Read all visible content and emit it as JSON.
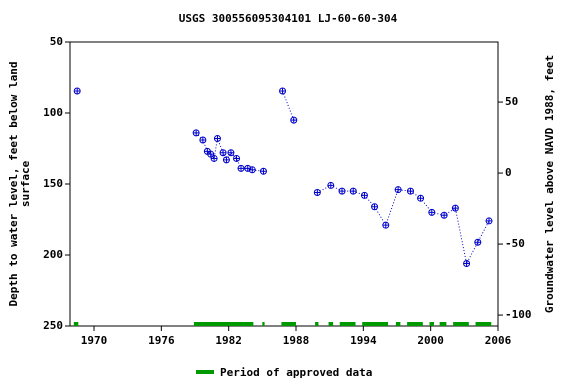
{
  "chart_data": {
    "type": "scatter",
    "title": "USGS 300556095304101 LJ-60-60-304",
    "y_label": [
      "Depth to water level, feet below land",
      "surface"
    ],
    "y2_label": "Groundwater level above NAVD 1988, feet",
    "xlim": [
      1967.86,
      2006
    ],
    "xticks": [
      1970,
      1976,
      1982,
      1988,
      1994,
      2000,
      2006
    ],
    "ylim": [
      50,
      250
    ],
    "y_inverted": true,
    "yticks": [
      50,
      100,
      150,
      200,
      250
    ],
    "y2lim": [
      -107.7,
      92.3
    ],
    "y2ticks": [
      50,
      0,
      -50,
      -100
    ],
    "series": [
      {
        "name": "Depth to water level",
        "color": "#0000cc",
        "x": [
          1968.5,
          null,
          1979.1,
          1979.7,
          1980.1,
          1980.4,
          1980.7,
          1981.0,
          1981.5,
          1981.8,
          1982.2,
          1982.7,
          1983.1,
          1983.7,
          1984.1,
          1985.1,
          null,
          1986.8,
          1987.8,
          null,
          1989.9,
          1991.1,
          1992.1,
          1993.1,
          1994.1,
          1995.0,
          1996.0,
          1997.1,
          1998.2,
          1999.1,
          2000.1,
          2001.2,
          2002.2,
          2003.2,
          2004.2,
          2005.2
        ],
        "values": [
          84.5,
          null,
          114,
          119,
          127,
          129,
          132,
          118,
          128,
          133,
          128,
          132,
          139,
          139,
          140,
          141,
          null,
          84.5,
          105,
          null,
          156,
          151,
          155,
          155,
          158,
          166,
          179,
          154,
          155,
          160,
          170,
          172,
          167,
          206,
          191,
          176
        ]
      }
    ],
    "approved_periods": {
      "name": "Period of approved data",
      "color": "#009900",
      "ranges": [
        [
          1968.2,
          1968.6
        ],
        [
          1978.9,
          1984.2
        ],
        [
          1985.0,
          1985.2
        ],
        [
          1986.7,
          1988.0
        ],
        [
          1989.7,
          1990.0
        ],
        [
          1990.9,
          1991.3
        ],
        [
          1991.9,
          1993.3
        ],
        [
          1993.9,
          1996.2
        ],
        [
          1996.9,
          1997.3
        ],
        [
          1997.9,
          1999.3
        ],
        [
          1999.9,
          2000.3
        ],
        [
          2000.8,
          2001.4
        ],
        [
          2002.0,
          2003.4
        ],
        [
          2004.0,
          2005.4
        ]
      ]
    }
  }
}
